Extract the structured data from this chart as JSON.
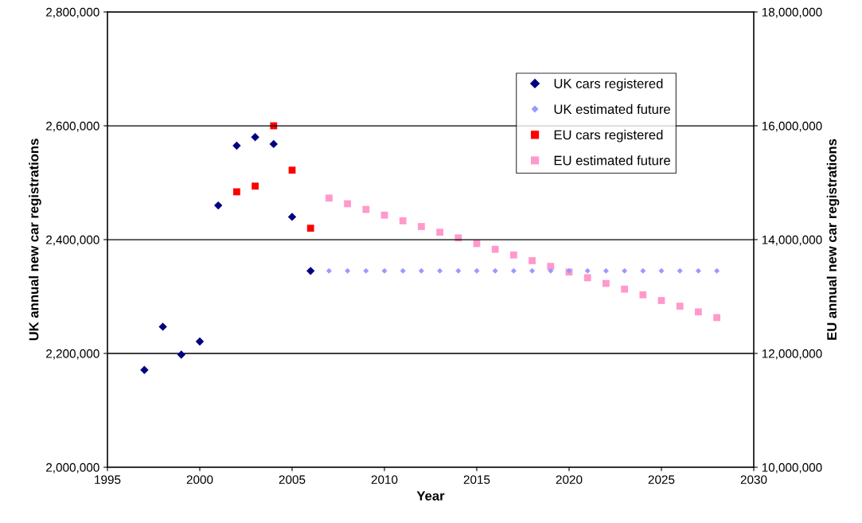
{
  "chart_data": {
    "type": "scatter",
    "xlabel": "Year",
    "ylabel": "UK annual new car registrations",
    "y2label": "EU annual new car registrations",
    "grid": "y",
    "legend": "top right",
    "xlim": [
      1995,
      2030
    ],
    "xticks": [
      1995,
      2000,
      2005,
      2010,
      2015,
      2020,
      2025,
      2030
    ],
    "ylim": [
      2000000,
      2800000
    ],
    "yticks": [
      {
        "value": 2000000,
        "label": "2,000,000"
      },
      {
        "value": 2200000,
        "label": "2,200,000"
      },
      {
        "value": 2400000,
        "label": "2,400,000"
      },
      {
        "value": 2600000,
        "label": "2,600,000"
      },
      {
        "value": 2800000,
        "label": "2,800,000"
      }
    ],
    "y2lim": [
      10000000,
      18000000
    ],
    "y2ticks": [
      {
        "value": 10000000,
        "label": "10,000,000"
      },
      {
        "value": 12000000,
        "label": "12,000,000"
      },
      {
        "value": 14000000,
        "label": "14,000,000"
      },
      {
        "value": 16000000,
        "label": "16,000,000"
      },
      {
        "value": 18000000,
        "label": "18,000,000"
      }
    ],
    "series": [
      {
        "name": "UK cars registered",
        "color": "#000080",
        "marker": "diamond",
        "x": [
          1997,
          1998,
          1999,
          2000,
          2001,
          2002,
          2003,
          2004,
          2005,
          2006
        ],
        "values": [
          2171000,
          2247000,
          2198000,
          2221000,
          2460000,
          2565000,
          2580000,
          2568000,
          2440000,
          2345000
        ]
      },
      {
        "name": "UK estimated future",
        "color": "#9999ff",
        "marker": "diamond",
        "x": [
          2007,
          2008,
          2009,
          2010,
          2011,
          2012,
          2013,
          2014,
          2015,
          2016,
          2017,
          2018,
          2019,
          2020,
          2021,
          2022,
          2023,
          2024,
          2025,
          2026,
          2027,
          2028
        ],
        "values": [
          2345000,
          2345000,
          2345000,
          2345000,
          2345000,
          2345000,
          2345000,
          2345000,
          2345000,
          2345000,
          2345000,
          2345000,
          2345000,
          2345000,
          2345000,
          2345000,
          2345000,
          2345000,
          2345000,
          2345000,
          2345000,
          2345000
        ]
      },
      {
        "name": "EU cars registered",
        "color": "#ff0000",
        "marker": "square",
        "axis": "y2",
        "x": [
          2002,
          2003,
          2004,
          2005,
          2006
        ],
        "values": [
          14840000,
          14940000,
          16000000,
          15220000,
          14200000
        ]
      },
      {
        "name": "EU estimated future",
        "color": "#ff99cc",
        "marker": "square",
        "axis": "y2",
        "x": [
          2007,
          2008,
          2009,
          2010,
          2011,
          2012,
          2013,
          2014,
          2015,
          2016,
          2017,
          2018,
          2019,
          2020,
          2021,
          2022,
          2023,
          2024,
          2025,
          2026,
          2027,
          2028
        ],
        "values": [
          14730000,
          14630000,
          14530000,
          14430000,
          14330000,
          14230000,
          14130000,
          14030000,
          13930000,
          13830000,
          13730000,
          13630000,
          13530000,
          13430000,
          13330000,
          13230000,
          13130000,
          13030000,
          12930000,
          12830000,
          12730000,
          12630000
        ]
      }
    ]
  }
}
